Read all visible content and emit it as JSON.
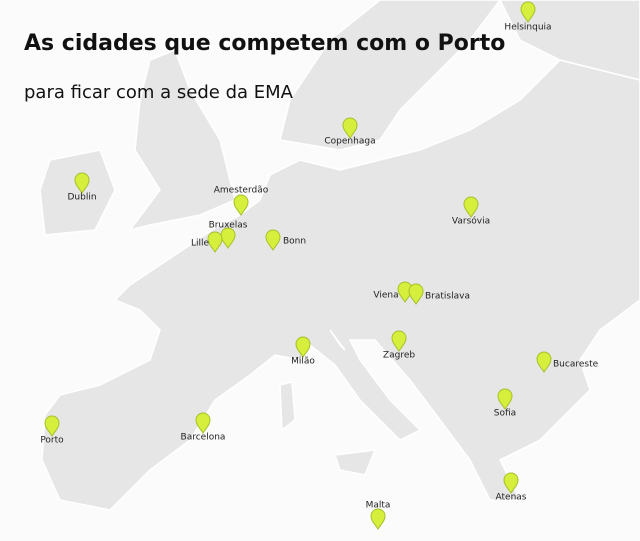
{
  "header": {
    "title": "As cidades que competem com o Porto",
    "subtitle": "para ficar com a sede da EMA"
  },
  "cities": [
    "Helsinquia",
    "Copenhaga",
    "Dublin",
    "Amesterdão",
    "Bruxelas",
    "Lille",
    "Bonn",
    "Varsóvia",
    "Viena",
    "Bratislava",
    "Zagreb",
    "Milão",
    "Bucareste",
    "Sofia",
    "Barcelona",
    "Porto",
    "Atenas",
    "Malta"
  ]
}
